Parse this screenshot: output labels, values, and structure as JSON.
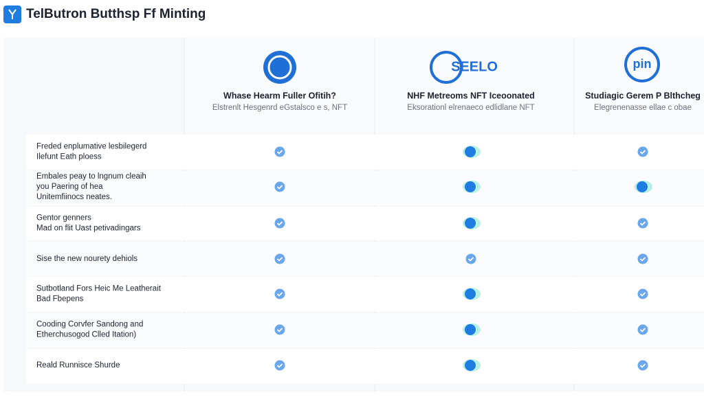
{
  "header": {
    "title": "TelButron Butthsp Ff Minting"
  },
  "columns": [
    {
      "title": "Whase Hearm Fuller Ofitih?",
      "subtitle": "Elstrenlt Hesgenrd eGstalsco e s, NFT"
    },
    {
      "logo_text": "SEELO",
      "title": "NHF Metreoms NFT Iceoonated",
      "subtitle": "Eksorationl elrenaeco edlidlane NFT"
    },
    {
      "logo_text": "pin",
      "title": "Studiagic Gerem P Blthcheg",
      "subtitle": "Elegrenenasse ellae c obae"
    }
  ],
  "rows": [
    {
      "label": [
        "Freded enplumative lesbilegerd",
        "Ilefunt Eath ploess"
      ]
    },
    {
      "label": [
        "Embales peay to lngnum cleaih",
        "you Paering of hea",
        "Unitemfiinocs neates."
      ]
    },
    {
      "label": [
        "Gentor genners",
        "Mad on flit Uast petivadingars"
      ]
    },
    {
      "label": [
        "Sise the new nourety dehiols"
      ]
    },
    {
      "label": [
        "Sutbotland Fors Heic Me Leatherait",
        "Bad Fbepens"
      ]
    },
    {
      "label": [
        "Cooding Corvfer Sandong and",
        "Etherchusogod Clled Itation)"
      ]
    },
    {
      "label": [
        "Reald Runnisce Shurde"
      ]
    }
  ]
}
